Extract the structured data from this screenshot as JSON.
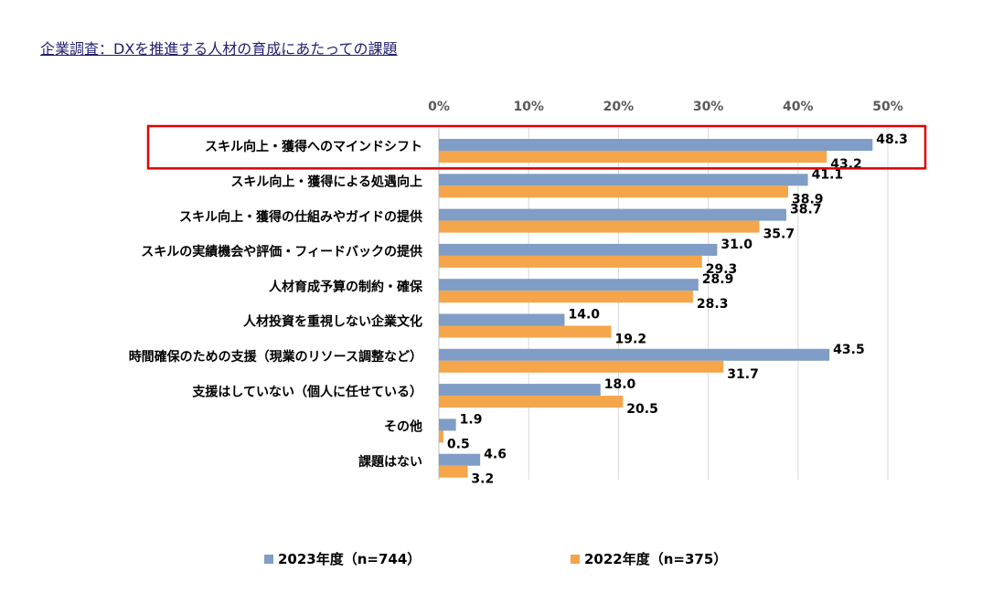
{
  "page_title": "企業調査：DXを推進する人材の育成にあたっての課題",
  "colors": {
    "series_2023": "#7f9dc6",
    "series_2022": "#f5a54a",
    "highlight_box": "#e00000",
    "grid": "#d9d9d9",
    "axis": "#bfbfbf"
  },
  "chart_data": {
    "type": "bar",
    "orientation": "horizontal",
    "title": "企業調査：DXを推進する人材の育成にあたっての課題",
    "xlabel": "",
    "ylabel": "",
    "xlim": [
      0,
      50
    ],
    "ticks": [
      0,
      10,
      20,
      30,
      40,
      50
    ],
    "tick_labels": [
      "0%",
      "10%",
      "20%",
      "30%",
      "40%",
      "50%"
    ],
    "grid": true,
    "legend_position": "bottom",
    "highlighted_category_index": 0,
    "categories": [
      "スキル向上・獲得へのマインドシフト",
      "スキル向上・獲得による処遇向上",
      "スキル向上・獲得の仕組みやガイドの提供",
      "スキルの実績機会や評価・フィードバックの提供",
      "人材育成予算の制約・確保",
      "人材投資を重視しない企業文化",
      "時間確保のための支援（現業のリソース調整など）",
      "支援はしていない（個人に任せている）",
      "その他",
      "課題はない"
    ],
    "series": [
      {
        "name": "2023年度（n=744）",
        "values": [
          48.3,
          41.1,
          38.7,
          31.0,
          28.9,
          14.0,
          43.5,
          18.0,
          1.9,
          4.6
        ],
        "labels": [
          "48.3",
          "41.1",
          "38.7",
          "31.0",
          "28.9",
          "14.0",
          "43.5",
          "18.0",
          "1.9",
          "4.6"
        ]
      },
      {
        "name": "2022年度（n=375）",
        "values": [
          43.2,
          38.9,
          35.7,
          29.3,
          28.3,
          19.2,
          31.7,
          20.5,
          0.5,
          3.2
        ],
        "labels": [
          "43.2",
          "38.9",
          "35.7",
          "29.3",
          "28.3",
          "19.2",
          "31.7",
          "20.5",
          "0.5",
          "3.2"
        ]
      }
    ]
  }
}
